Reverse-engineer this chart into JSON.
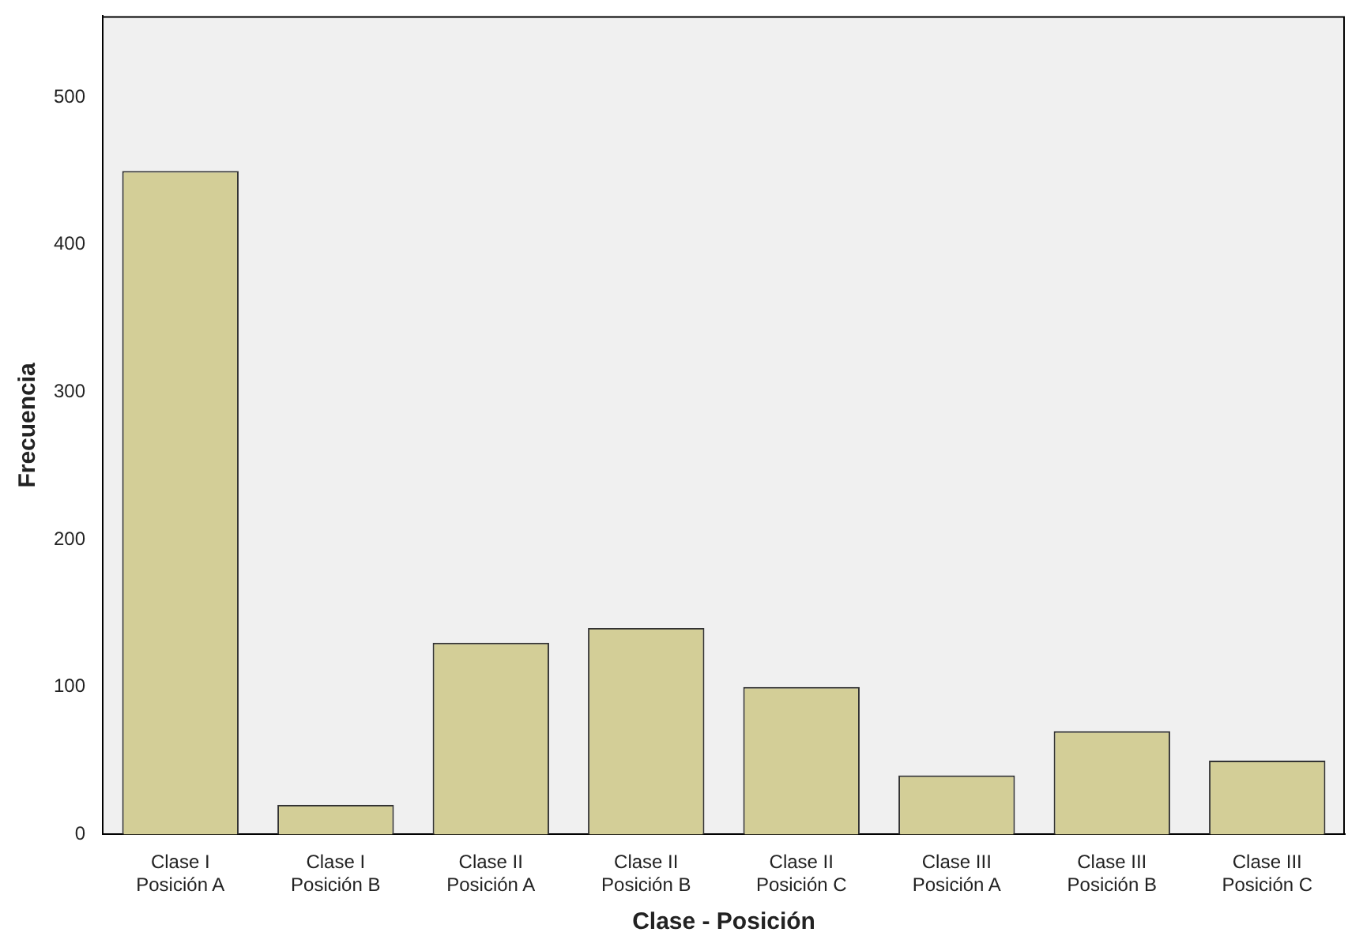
{
  "chart_data": {
    "type": "bar",
    "xlabel": "Clase - Posición",
    "ylabel": "Frecuencia",
    "categories": [
      "Clase I\nPosición A",
      "Clase I\nPosición B",
      "Clase II\nPosición A",
      "Clase II\nPosición B",
      "Clase II\nPosición C",
      "Clase III\nPosición A",
      "Clase III\nPosición B",
      "Clase III\nPosición C"
    ],
    "values": [
      450,
      20,
      130,
      140,
      100,
      40,
      70,
      50
    ],
    "color": "#d3ce97",
    "ylim": [
      0,
      555
    ],
    "yticks": [
      0,
      100,
      200,
      300,
      400,
      500
    ],
    "grid": false,
    "legend": false
  }
}
